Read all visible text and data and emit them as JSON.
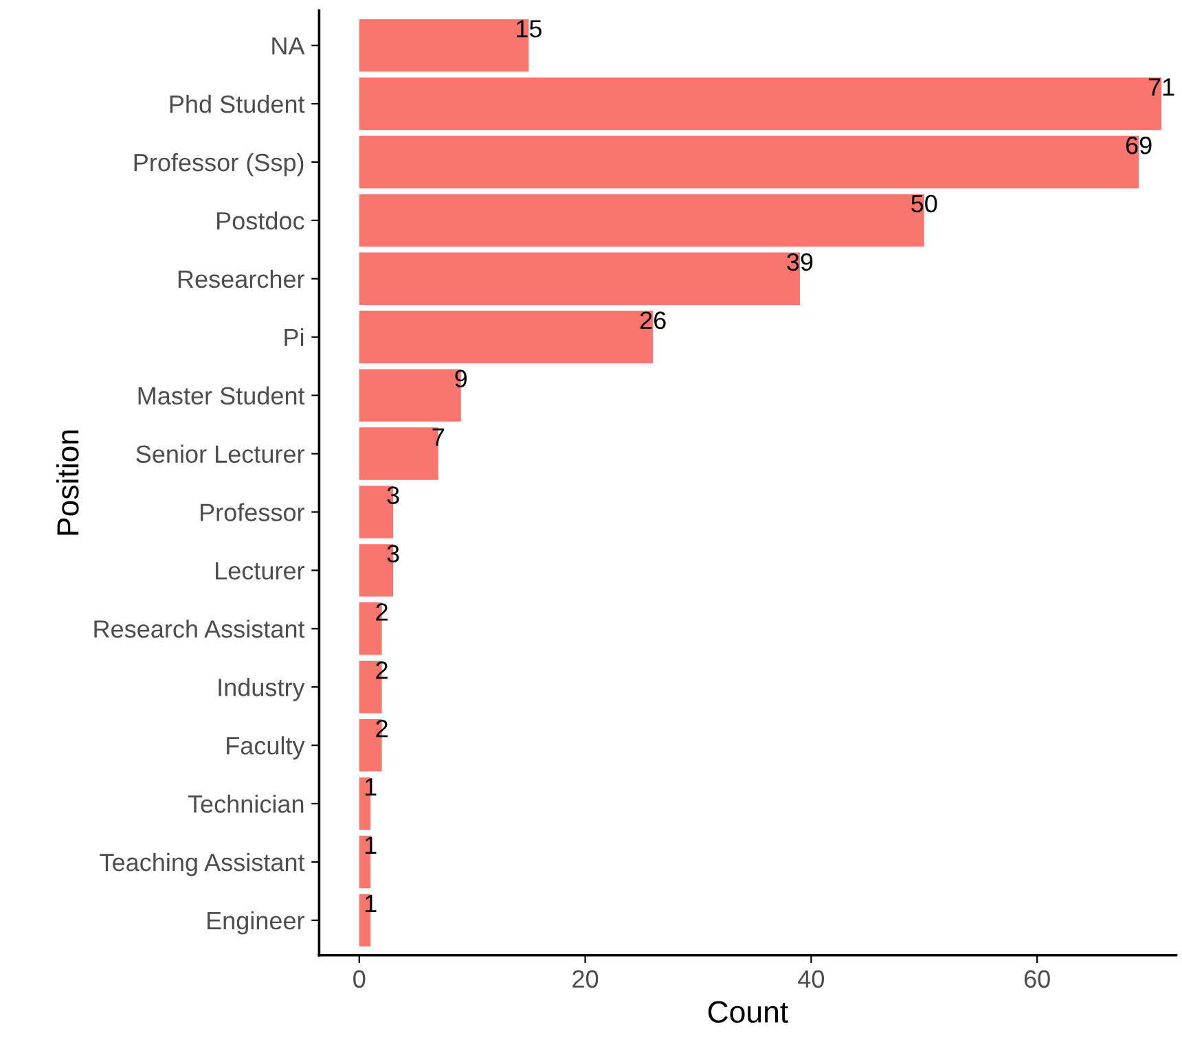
{
  "chart_data": {
    "type": "bar",
    "orientation": "horizontal",
    "xlabel": "Count",
    "ylabel": "Position",
    "categories": [
      "NA",
      "Phd Student",
      "Professor (Ssp)",
      "Postdoc",
      "Researcher",
      "Pi",
      "Master Student",
      "Senior Lecturer",
      "Professor",
      "Lecturer",
      "Research Assistant",
      "Industry",
      "Faculty",
      "Technician",
      "Teaching Assistant",
      "Engineer"
    ],
    "values": [
      15,
      71,
      69,
      50,
      39,
      26,
      9,
      7,
      3,
      3,
      2,
      2,
      2,
      1,
      1,
      1
    ],
    "color": "#f8766d",
    "data_labels": true,
    "grid": false,
    "legend": false,
    "xlim": [
      -3.55,
      72.3
    ],
    "xticks": [
      0,
      20,
      40,
      60
    ]
  }
}
